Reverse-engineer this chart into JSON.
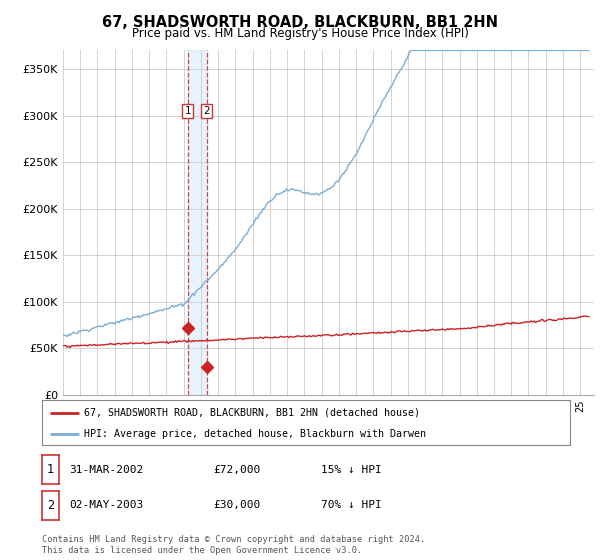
{
  "title": "67, SHADSWORTH ROAD, BLACKBURN, BB1 2HN",
  "subtitle": "Price paid vs. HM Land Registry's House Price Index (HPI)",
  "ylabel_ticks": [
    "£0",
    "£50K",
    "£100K",
    "£150K",
    "£200K",
    "£250K",
    "£300K",
    "£350K"
  ],
  "ylabel_values": [
    0,
    50000,
    100000,
    150000,
    200000,
    250000,
    300000,
    350000
  ],
  "ylim": [
    0,
    370000
  ],
  "xlim_start": 1995.0,
  "xlim_end": 2025.8,
  "transaction1_date": 2002.23,
  "transaction1_price": 72000,
  "transaction1_label": "1",
  "transaction2_date": 2003.33,
  "transaction2_price": 30000,
  "transaction2_label": "2",
  "hpi_color": "#7aaed6",
  "price_color": "#cc2222",
  "vline_color": "#cc3333",
  "shade_color": "#ddeeff",
  "legend_label1": "67, SHADSWORTH ROAD, BLACKBURN, BB1 2HN (detached house)",
  "legend_label2": "HPI: Average price, detached house, Blackburn with Darwen",
  "table_row1": [
    "1",
    "31-MAR-2002",
    "£72,000",
    "15% ↓ HPI"
  ],
  "table_row2": [
    "2",
    "02-MAY-2003",
    "£30,000",
    "70% ↓ HPI"
  ],
  "footnote": "Contains HM Land Registry data © Crown copyright and database right 2024.\nThis data is licensed under the Open Government Licence v3.0.",
  "background_color": "#ffffff",
  "grid_color": "#cccccc"
}
